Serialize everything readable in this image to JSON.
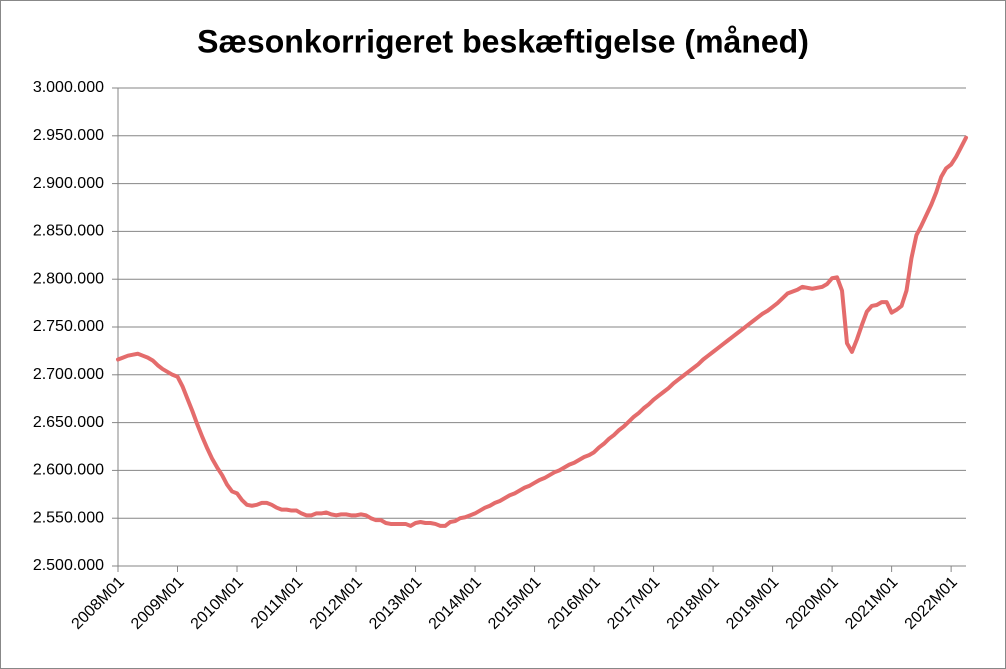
{
  "chart_data": {
    "type": "line",
    "title": "Sæsonkorrigeret beskæftigelse (måned)",
    "categories": [
      "2008M01",
      null,
      null,
      null,
      null,
      null,
      null,
      null,
      null,
      null,
      null,
      null,
      "2009M01",
      null,
      null,
      null,
      null,
      null,
      null,
      null,
      null,
      null,
      null,
      null,
      "2010M01",
      null,
      null,
      null,
      null,
      null,
      null,
      null,
      null,
      null,
      null,
      null,
      "2011M01",
      null,
      null,
      null,
      null,
      null,
      null,
      null,
      null,
      null,
      null,
      null,
      "2012M01",
      null,
      null,
      null,
      null,
      null,
      null,
      null,
      null,
      null,
      null,
      null,
      "2013M01",
      null,
      null,
      null,
      null,
      null,
      null,
      null,
      null,
      null,
      null,
      null,
      "2014M01",
      null,
      null,
      null,
      null,
      null,
      null,
      null,
      null,
      null,
      null,
      null,
      "2015M01",
      null,
      null,
      null,
      null,
      null,
      null,
      null,
      null,
      null,
      null,
      null,
      "2016M01",
      null,
      null,
      null,
      null,
      null,
      null,
      null,
      null,
      null,
      null,
      null,
      "2017M01",
      null,
      null,
      null,
      null,
      null,
      null,
      null,
      null,
      null,
      null,
      null,
      "2018M01",
      null,
      null,
      null,
      null,
      null,
      null,
      null,
      null,
      null,
      null,
      null,
      "2019M01",
      null,
      null,
      null,
      null,
      null,
      null,
      null,
      null,
      null,
      null,
      null,
      "2020M01",
      null,
      null,
      null,
      null,
      null,
      null,
      null,
      null,
      null,
      null,
      null,
      "2021M01",
      null,
      null,
      null,
      null,
      null,
      null,
      null,
      null,
      null,
      null,
      null,
      "2022M01",
      null,
      null,
      null
    ],
    "series": [
      {
        "color": "#e46c6c",
        "values": [
          2716000,
          2718000,
          2720000,
          2721000,
          2722000,
          2720000,
          2718000,
          2715000,
          2710000,
          2706000,
          2703000,
          2700000,
          2698000,
          2688000,
          2675000,
          2662000,
          2648000,
          2635000,
          2623000,
          2612000,
          2603000,
          2595000,
          2585000,
          2578000,
          2576000,
          2569000,
          2564000,
          2563000,
          2564000,
          2566000,
          2566000,
          2564000,
          2561000,
          2559000,
          2559000,
          2558000,
          2558000,
          2555000,
          2553000,
          2553000,
          2555000,
          2555000,
          2556000,
          2554000,
          2553000,
          2554000,
          2554000,
          2553000,
          2553000,
          2554000,
          2553000,
          2550000,
          2548000,
          2548000,
          2545000,
          2544000,
          2544000,
          2544000,
          2544000,
          2542000,
          2545000,
          2546000,
          2545000,
          2545000,
          2544000,
          2542000,
          2542000,
          2546000,
          2547000,
          2550000,
          2551000,
          2553000,
          2555000,
          2558000,
          2561000,
          2563000,
          2566000,
          2568000,
          2571000,
          2574000,
          2576000,
          2579000,
          2582000,
          2584000,
          2587000,
          2590000,
          2592000,
          2595000,
          2598000,
          2600000,
          2603000,
          2606000,
          2608000,
          2611000,
          2614000,
          2616000,
          2619000,
          2624000,
          2628000,
          2633000,
          2637000,
          2642000,
          2646000,
          2651000,
          2656000,
          2660000,
          2665000,
          2669000,
          2674000,
          2678000,
          2682000,
          2686000,
          2691000,
          2695000,
          2699000,
          2703000,
          2707000,
          2711000,
          2716000,
          2720000,
          2724000,
          2728000,
          2732000,
          2736000,
          2740000,
          2744000,
          2748000,
          2752000,
          2756000,
          2760000,
          2764000,
          2767000,
          2771000,
          2775000,
          2780000,
          2785000,
          2787000,
          2789000,
          2792000,
          2791000,
          2790000,
          2791000,
          2792000,
          2795000,
          2801000,
          2802000,
          2788000,
          2733000,
          2724000,
          2737000,
          2752000,
          2766000,
          2772000,
          2773000,
          2776000,
          2776000,
          2765000,
          2768000,
          2772000,
          2788000,
          2822000,
          2846000,
          2856000,
          2867000,
          2878000,
          2891000,
          2907000,
          2916000,
          2920000,
          2928000,
          2938000,
          2948000
        ]
      }
    ],
    "ylim": [
      2500000,
      3000000
    ],
    "yticks": [
      {
        "value": 2500000,
        "label": "2.500.000"
      },
      {
        "value": 2550000,
        "label": "2.550.000"
      },
      {
        "value": 2600000,
        "label": "2.600.000"
      },
      {
        "value": 2650000,
        "label": "2.650.000"
      },
      {
        "value": 2700000,
        "label": "2.700.000"
      },
      {
        "value": 2750000,
        "label": "2.750.000"
      },
      {
        "value": 2800000,
        "label": "2.800.000"
      },
      {
        "value": 2850000,
        "label": "2.850.000"
      },
      {
        "value": 2900000,
        "label": "2.900.000"
      },
      {
        "value": 2950000,
        "label": "2.950.000"
      },
      {
        "value": 3000000,
        "label": "3.000.000"
      }
    ],
    "grid": true
  }
}
